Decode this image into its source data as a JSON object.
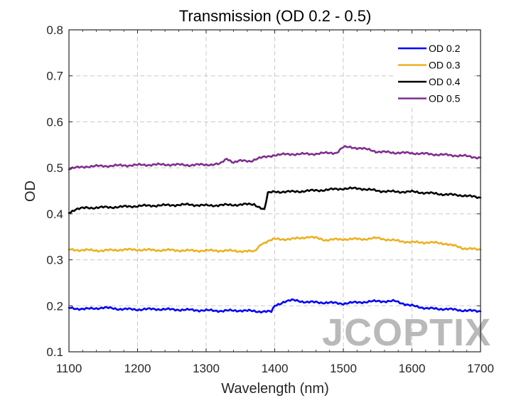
{
  "chart_data": {
    "type": "line",
    "title": "Transmission (OD 0.2 - 0.5)",
    "xlabel": "Wavelength (nm)",
    "ylabel": "OD",
    "xlim": [
      1100,
      1700
    ],
    "ylim": [
      0.1,
      0.8
    ],
    "xticks": [
      1100,
      1200,
      1300,
      1400,
      1500,
      1600,
      1700
    ],
    "yticks": [
      0.1,
      0.2,
      0.3,
      0.4,
      0.5,
      0.6,
      0.7,
      0.8
    ],
    "ytick_labels": [
      "0.1",
      "0.2",
      "0.3",
      "0.4",
      "0.5",
      "0.6",
      "0.7",
      "0.8"
    ],
    "grid": true,
    "legend_position": "top-right",
    "watermark": "JCOPTIX",
    "series": [
      {
        "name": "OD 0.2",
        "color": "#0000ff",
        "points": [
          [
            1100,
            0.195
          ],
          [
            1125,
            0.193
          ],
          [
            1150,
            0.196
          ],
          [
            1175,
            0.193
          ],
          [
            1200,
            0.192
          ],
          [
            1225,
            0.193
          ],
          [
            1250,
            0.192
          ],
          [
            1275,
            0.191
          ],
          [
            1300,
            0.19
          ],
          [
            1325,
            0.189
          ],
          [
            1350,
            0.19
          ],
          [
            1375,
            0.188
          ],
          [
            1395,
            0.187
          ],
          [
            1400,
            0.2
          ],
          [
            1415,
            0.21
          ],
          [
            1425,
            0.212
          ],
          [
            1450,
            0.208
          ],
          [
            1475,
            0.207
          ],
          [
            1500,
            0.205
          ],
          [
            1525,
            0.208
          ],
          [
            1550,
            0.21
          ],
          [
            1575,
            0.21
          ],
          [
            1600,
            0.2
          ],
          [
            1625,
            0.194
          ],
          [
            1650,
            0.193
          ],
          [
            1675,
            0.19
          ],
          [
            1700,
            0.188
          ]
        ]
      },
      {
        "name": "OD 0.3",
        "color": "#edb120",
        "points": [
          [
            1100,
            0.322
          ],
          [
            1125,
            0.321
          ],
          [
            1150,
            0.32
          ],
          [
            1175,
            0.322
          ],
          [
            1200,
            0.322
          ],
          [
            1225,
            0.321
          ],
          [
            1250,
            0.321
          ],
          [
            1275,
            0.32
          ],
          [
            1300,
            0.32
          ],
          [
            1325,
            0.32
          ],
          [
            1350,
            0.319
          ],
          [
            1370,
            0.318
          ],
          [
            1380,
            0.335
          ],
          [
            1400,
            0.345
          ],
          [
            1425,
            0.345
          ],
          [
            1450,
            0.35
          ],
          [
            1475,
            0.343
          ],
          [
            1500,
            0.345
          ],
          [
            1525,
            0.345
          ],
          [
            1550,
            0.347
          ],
          [
            1575,
            0.342
          ],
          [
            1600,
            0.338
          ],
          [
            1625,
            0.338
          ],
          [
            1650,
            0.335
          ],
          [
            1675,
            0.325
          ],
          [
            1700,
            0.322
          ]
        ]
      },
      {
        "name": "OD 0.4",
        "color": "#000000",
        "points": [
          [
            1100,
            0.403
          ],
          [
            1110,
            0.41
          ],
          [
            1125,
            0.413
          ],
          [
            1150,
            0.414
          ],
          [
            1175,
            0.415
          ],
          [
            1200,
            0.417
          ],
          [
            1225,
            0.418
          ],
          [
            1250,
            0.419
          ],
          [
            1275,
            0.42
          ],
          [
            1300,
            0.418
          ],
          [
            1325,
            0.419
          ],
          [
            1350,
            0.42
          ],
          [
            1370,
            0.421
          ],
          [
            1385,
            0.408
          ],
          [
            1390,
            0.445
          ],
          [
            1400,
            0.448
          ],
          [
            1425,
            0.448
          ],
          [
            1450,
            0.45
          ],
          [
            1475,
            0.452
          ],
          [
            1500,
            0.455
          ],
          [
            1525,
            0.455
          ],
          [
            1550,
            0.45
          ],
          [
            1575,
            0.448
          ],
          [
            1600,
            0.448
          ],
          [
            1625,
            0.445
          ],
          [
            1650,
            0.442
          ],
          [
            1675,
            0.44
          ],
          [
            1700,
            0.435
          ]
        ]
      },
      {
        "name": "OD 0.5",
        "color": "#7e2f8e",
        "points": [
          [
            1100,
            0.498
          ],
          [
            1125,
            0.503
          ],
          [
            1150,
            0.504
          ],
          [
            1175,
            0.505
          ],
          [
            1200,
            0.506
          ],
          [
            1225,
            0.507
          ],
          [
            1250,
            0.507
          ],
          [
            1275,
            0.506
          ],
          [
            1300,
            0.507
          ],
          [
            1320,
            0.508
          ],
          [
            1330,
            0.52
          ],
          [
            1340,
            0.512
          ],
          [
            1350,
            0.515
          ],
          [
            1365,
            0.515
          ],
          [
            1375,
            0.52
          ],
          [
            1400,
            0.528
          ],
          [
            1425,
            0.53
          ],
          [
            1450,
            0.53
          ],
          [
            1475,
            0.532
          ],
          [
            1490,
            0.533
          ],
          [
            1500,
            0.545
          ],
          [
            1525,
            0.543
          ],
          [
            1550,
            0.535
          ],
          [
            1575,
            0.533
          ],
          [
            1600,
            0.532
          ],
          [
            1625,
            0.53
          ],
          [
            1650,
            0.528
          ],
          [
            1675,
            0.526
          ],
          [
            1700,
            0.522
          ]
        ]
      }
    ]
  }
}
